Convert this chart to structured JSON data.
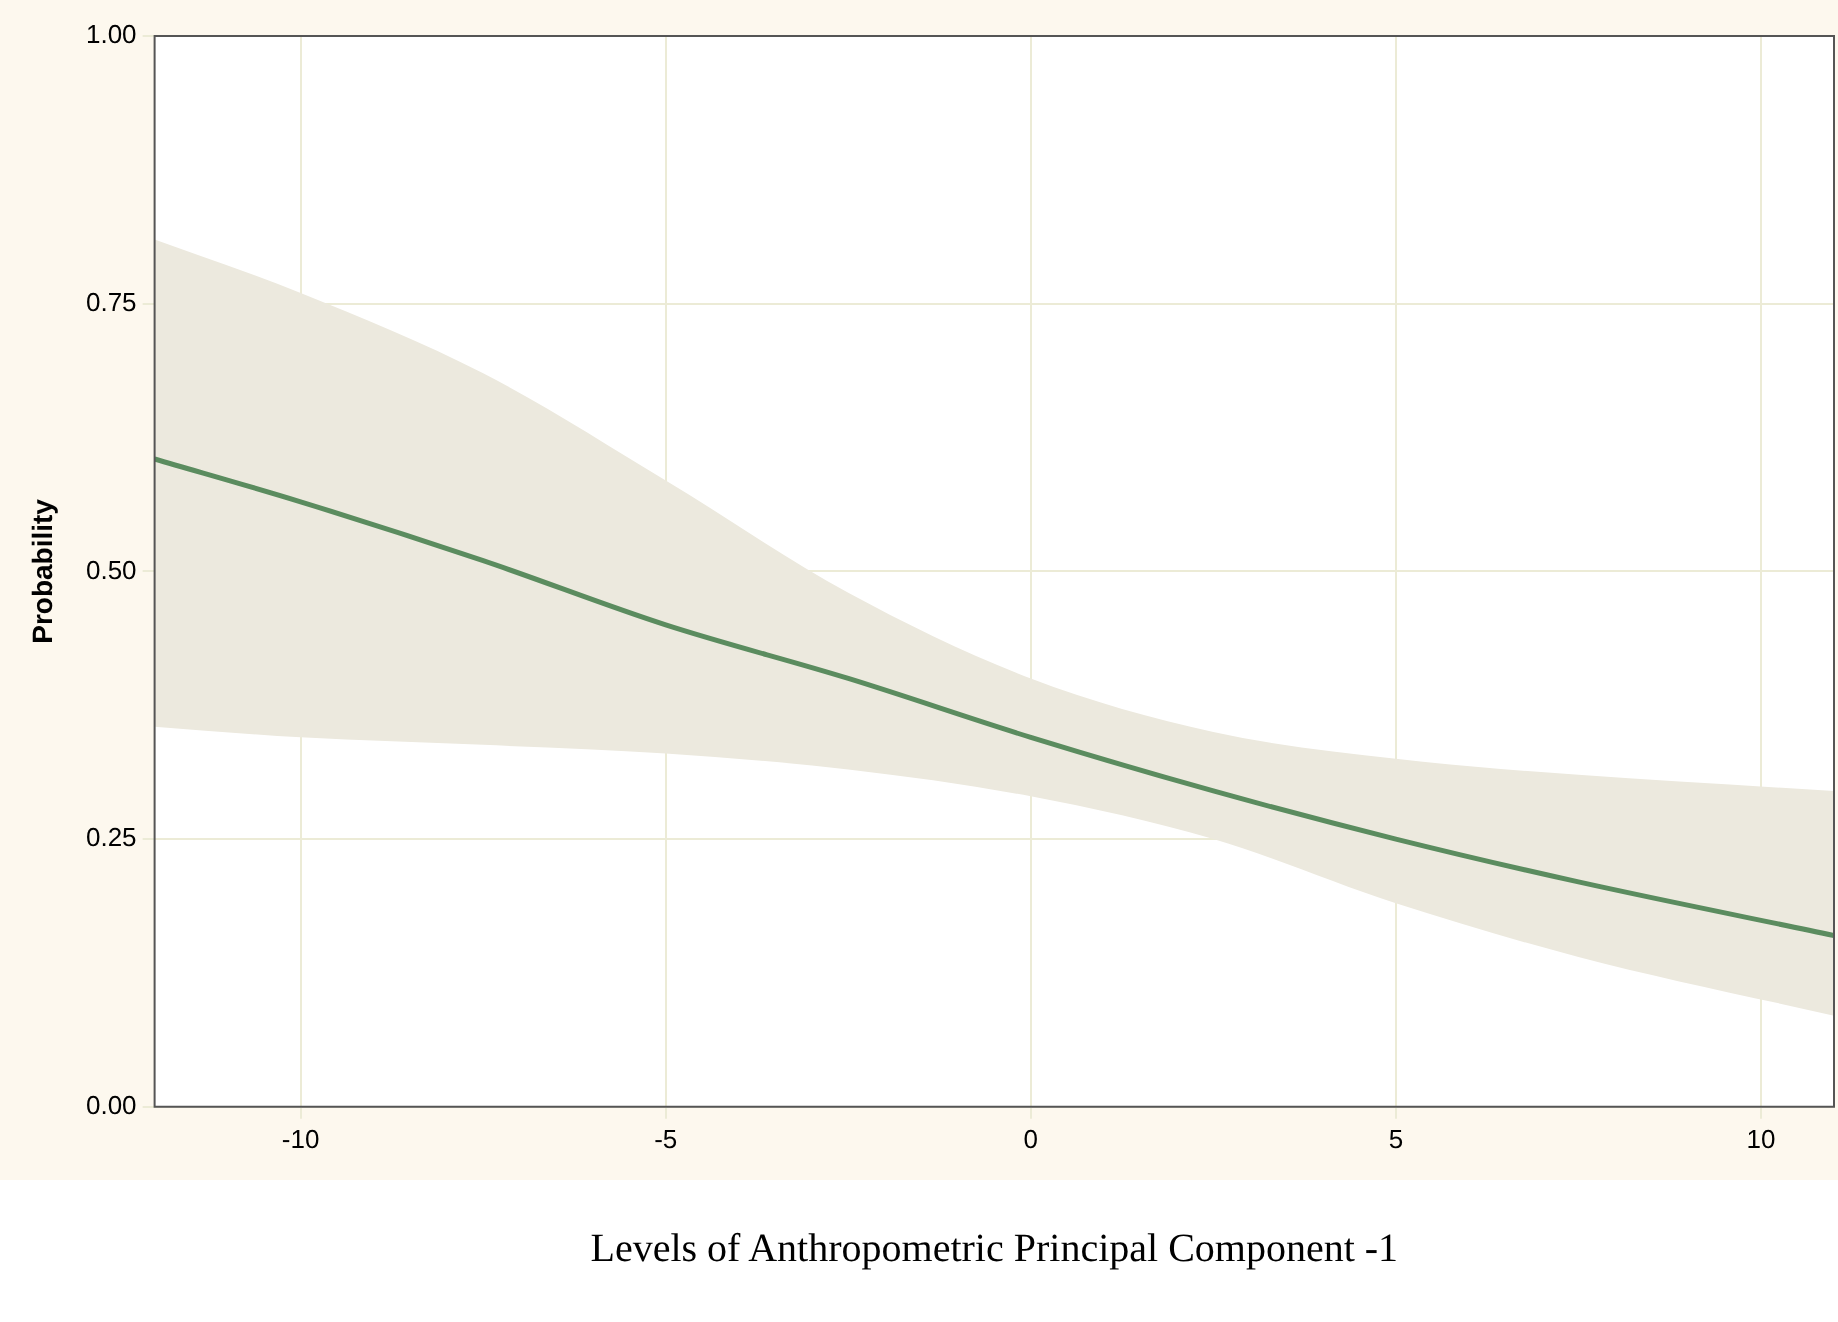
{
  "chart_data": {
    "type": "line",
    "xlabel": "Levels of Anthropometric Principal Component -1",
    "ylabel": "Probability",
    "xlim": [
      -12,
      11
    ],
    "xticks": [
      -10,
      -5,
      0,
      5,
      10
    ],
    "ylim": [
      0,
      1
    ],
    "yticks": [
      {
        "value": 0,
        "label": "0.00"
      },
      {
        "value": 0.25,
        "label": "0.25"
      },
      {
        "value": 0.5,
        "label": "0.50"
      },
      {
        "value": 0.75,
        "label": "0.75"
      },
      {
        "value": 1,
        "label": "1.00"
      }
    ],
    "grid": true,
    "legend": false,
    "marker": "none",
    "line_style": "solid",
    "series": [
      {
        "color": "#5b8c5f",
        "x": [
          -12,
          -10,
          -7.5,
          -5,
          -2.5,
          0,
          2.5,
          5,
          7.5,
          11
        ],
        "values": [
          0.605,
          0.565,
          0.51,
          0.45,
          0.4,
          0.345,
          0.295,
          0.25,
          0.21,
          0.16
        ],
        "lower": [
          0.355,
          0.345,
          0.338,
          0.33,
          0.315,
          0.29,
          0.25,
          0.19,
          0.14,
          0.085
        ],
        "upper": [
          0.81,
          0.76,
          0.685,
          0.585,
          0.48,
          0.4,
          0.35,
          0.325,
          0.31,
          0.295
        ]
      }
    ]
  }
}
